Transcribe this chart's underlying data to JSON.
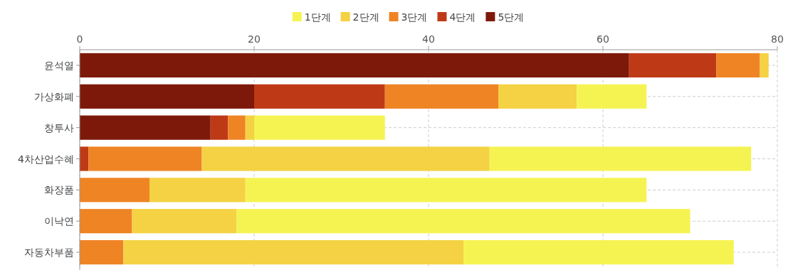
{
  "chart_data": {
    "type": "bar",
    "orientation": "horizontal",
    "stacked": true,
    "categories": [
      "윤석열",
      "가상화폐",
      "창투사",
      "4차산업수혜",
      "화장품",
      "이낙연",
      "자동차부품"
    ],
    "series": [
      {
        "name": "5단계",
        "color": "#7d190a",
        "values": [
          63,
          20,
          15,
          null,
          null,
          null,
          null
        ]
      },
      {
        "name": "4단계",
        "color": "#be3a17",
        "values": [
          10,
          15,
          2,
          1,
          null,
          null,
          null
        ]
      },
      {
        "name": "3단계",
        "color": "#ef8425",
        "values": [
          5,
          13,
          2,
          13,
          8,
          6,
          5
        ]
      },
      {
        "name": "2단계",
        "color": "#f4d243",
        "values": [
          1,
          9,
          1,
          33,
          11,
          12,
          39
        ]
      },
      {
        "name": "1단계",
        "color": "#f5f352",
        "values": [
          null,
          8,
          15,
          30,
          46,
          52,
          31
        ]
      }
    ],
    "xlim": [
      0,
      80
    ],
    "xticks": [
      0,
      20,
      40,
      60,
      80
    ],
    "grid": true,
    "legend": "top"
  }
}
